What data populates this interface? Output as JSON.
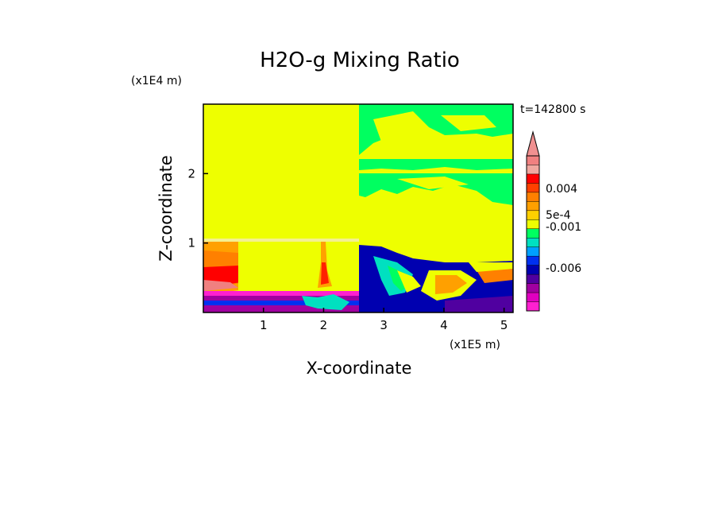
{
  "chart_data": {
    "type": "heatmap",
    "title": "H2O-g Mixing Ratio",
    "xlabel": "X-coordinate",
    "ylabel": "Z-coordinate",
    "x_unit": "(x1E5 m)",
    "y_unit": "(x1E4 m)",
    "time_label": "t=142800 s",
    "xlim": [
      0,
      5.15
    ],
    "ylim": [
      0,
      3.0
    ],
    "x_ticks": [
      1,
      2,
      3,
      4,
      5
    ],
    "y_ticks": [
      1,
      2
    ],
    "colorbar": {
      "levels": [
        "-0.006",
        "-0.001",
        "5e-4",
        "0.004"
      ],
      "level_values": [
        -0.006,
        -0.001,
        0.0005,
        0.004
      ],
      "colors_top_to_bottom": [
        "#f08080",
        "#f0a8a0",
        "#ff0000",
        "#ff4000",
        "#ff8000",
        "#ffa000",
        "#ffd000",
        "#eeff00",
        "#00ff60",
        "#00e0c0",
        "#00a0ff",
        "#0030f0",
        "#0000b0",
        "#5000a0",
        "#a000a0",
        "#e000c0",
        "#ff20d0"
      ],
      "extend_top_arrow": true
    },
    "regions": [
      {
        "name": "upper-yellow-left",
        "color": "#eeff00"
      },
      {
        "name": "upper-right-green",
        "color": "#00ff60"
      },
      {
        "name": "lower-left-red",
        "color": "#ff0000"
      },
      {
        "name": "lower-right-blue",
        "color": "#0000b0"
      },
      {
        "name": "surface-magenta",
        "color": "#a000a0"
      }
    ],
    "grid": false
  }
}
